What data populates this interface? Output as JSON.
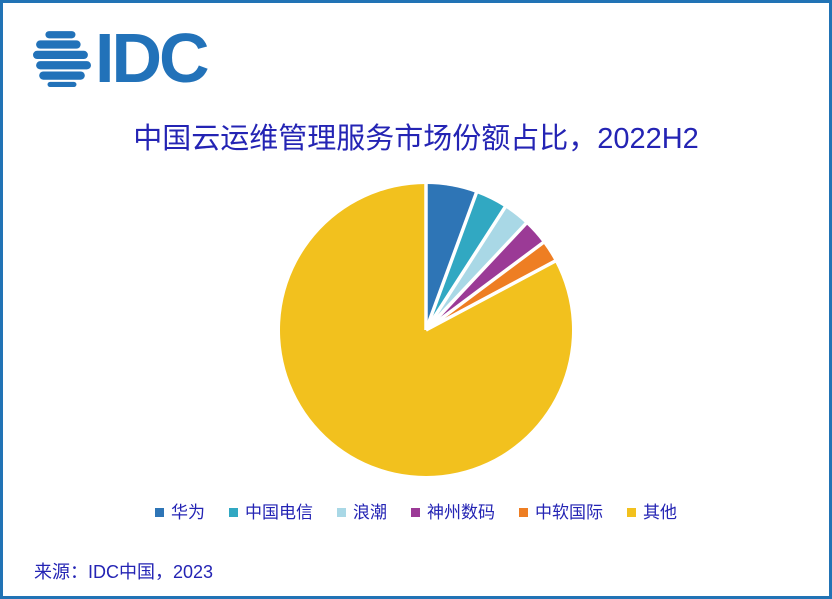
{
  "brand": {
    "name": "IDC",
    "logo_color": "#2272b9"
  },
  "title": "中国云运维管理服务市场份额占比，2022H2",
  "source": "来源：IDC中国，2023",
  "frame_color": "#2173b5",
  "text_color": "#2424b4",
  "chart_data": {
    "type": "pie",
    "title": "中国云运维管理服务市场份额占比，2022H2",
    "labels": [
      "华为",
      "中国电信",
      "浪潮",
      "神州数码",
      "中软国际",
      "其他"
    ],
    "values": [
      5.6,
      3.5,
      2.9,
      2.8,
      2.4,
      82.8
    ],
    "unit": "percent",
    "colors": [
      "#2e75b6",
      "#31a8c2",
      "#a9d8e6",
      "#9b3a96",
      "#ee7e23",
      "#f2c11e"
    ],
    "start_angle_deg": 0,
    "direction": "clockwise",
    "slice_gap_color": "#ffffff",
    "legend_position": "bottom",
    "data_labels_shown": false
  }
}
